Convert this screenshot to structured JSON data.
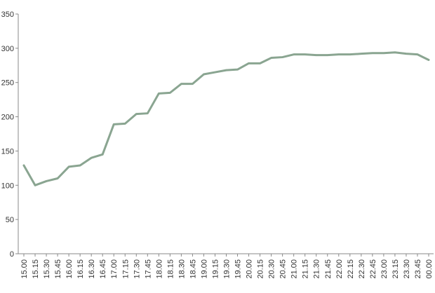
{
  "chart_data": {
    "type": "line",
    "title": "",
    "xlabel": "",
    "ylabel": "",
    "ylim": [
      0,
      350
    ],
    "yticks": [
      0,
      50,
      100,
      150,
      200,
      250,
      300,
      350
    ],
    "grid": false,
    "legend": "none",
    "x": [
      "15.00",
      "15.15",
      "15.30",
      "15.45",
      "16.00",
      "16.15",
      "16.30",
      "16.45",
      "17.00",
      "17.15",
      "17.30",
      "17.45",
      "18.00",
      "18.15",
      "18.30",
      "18.45",
      "19.00",
      "19.15",
      "19.30",
      "19.45",
      "20.00",
      "20.15",
      "20.30",
      "20.45",
      "21.00",
      "21.15",
      "21.30",
      "21.45",
      "22.00",
      "22.15",
      "22.30",
      "22.45",
      "23.00",
      "23.15",
      "23.30",
      "23.45",
      "00.00"
    ],
    "series": [
      {
        "color": "#8aa591",
        "values": [
          129,
          100,
          106,
          110,
          127,
          129,
          140,
          145,
          189,
          190,
          204,
          205,
          234,
          235,
          248,
          248,
          262,
          265,
          268,
          269,
          278,
          278,
          286,
          287,
          291,
          291,
          290,
          290,
          291,
          291,
          292,
          293,
          293,
          294,
          292,
          291,
          283
        ]
      }
    ]
  }
}
